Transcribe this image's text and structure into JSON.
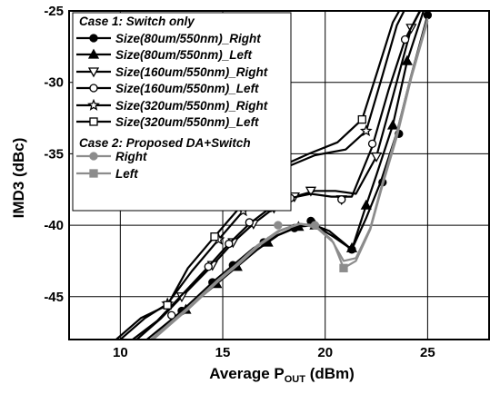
{
  "chart_data": {
    "type": "line",
    "xlabel_main": "Average P",
    "xlabel_sub": "OUT",
    "xlabel_unit": " (dBm)",
    "ylabel": "IMD3 (dBc)",
    "xlim": [
      7.5,
      28
    ],
    "ylim": [
      -48,
      -25
    ],
    "xticks": [
      10,
      15,
      20,
      25
    ],
    "yticks": [
      -25,
      -30,
      -35,
      -40,
      -45
    ],
    "grid": true,
    "legend_position": "top-left",
    "legend": {
      "case1_title": "Case 1: Switch only",
      "case2_title": "Case 2: Proposed DA+Switch"
    },
    "series": [
      {
        "name": "Size(80um/550nm)_Right",
        "color": "#000000",
        "marker": "filled-circle",
        "x": [
          11.3,
          12.5,
          13.0,
          14.5,
          15.5,
          16.5,
          17.5,
          18.5,
          19.3,
          20.2,
          21.3,
          22.0,
          22.7,
          23.5,
          24.2,
          25.0
        ],
        "y": [
          -48,
          -46.6,
          -46.0,
          -44.0,
          -42.8,
          -41.6,
          -40.8,
          -40.2,
          -39.9,
          -40.4,
          -41.7,
          -39.5,
          -37.0,
          -33.5,
          -29.5,
          -25.3
        ],
        "markers_x": [
          13.0,
          14.5,
          15.5,
          17.0,
          18.5,
          19.3,
          21.3,
          22.8,
          23.6,
          25.0
        ],
        "markers_y": [
          -46.0,
          -44.0,
          -42.8,
          -41.2,
          -40.2,
          -39.7,
          -41.7,
          -37.0,
          -33.6,
          -25.3
        ]
      },
      {
        "name": "Size(80um/550nm)_Left",
        "color": "#000000",
        "marker": "filled-triangle",
        "x": [
          11.5,
          12.7,
          13.2,
          14.7,
          15.7,
          16.7,
          17.7,
          18.7,
          19.5,
          20.4,
          21.3,
          22.0,
          22.5,
          23.3,
          24.0,
          24.8
        ],
        "y": [
          -48,
          -46.5,
          -45.9,
          -44.1,
          -42.9,
          -41.7,
          -40.7,
          -40.1,
          -40.0,
          -40.8,
          -41.7,
          -38.6,
          -36.5,
          -33.0,
          -28.5,
          -25.0
        ],
        "markers_x": [
          13.2,
          14.7,
          15.7,
          17.2,
          18.7,
          19.5,
          21.3,
          22.0,
          23.3,
          24.0
        ],
        "markers_y": [
          -45.9,
          -44.1,
          -42.9,
          -41.2,
          -40.1,
          -40.0,
          -41.6,
          -38.6,
          -33.0,
          -28.5
        ]
      },
      {
        "name": "Size(160um/550nm)_Right",
        "color": "#000000",
        "marker": "open-triangle-down",
        "x": [
          10.8,
          12.0,
          13.0,
          14.5,
          15.5,
          16.5,
          17.5,
          18.5,
          19.5,
          20.5,
          21.5,
          22.5,
          23.3,
          24.2,
          25.0
        ],
        "y": [
          -48,
          -46.5,
          -45.0,
          -42.8,
          -41.2,
          -39.9,
          -38.8,
          -38.0,
          -37.6,
          -37.6,
          -37.8,
          -35.2,
          -31.0,
          -26.2,
          -24.0
        ],
        "markers_x": [
          13.0,
          14.5,
          15.5,
          16.5,
          17.5,
          18.5,
          19.3,
          20.8,
          22.5,
          24.2
        ],
        "markers_y": [
          -45.0,
          -42.8,
          -41.2,
          -39.9,
          -38.8,
          -38.0,
          -37.6,
          -38.2,
          -35.2,
          -26.2
        ]
      },
      {
        "name": "Size(160um/550nm)_Left",
        "color": "#000000",
        "marker": "open-circle",
        "x": [
          10.6,
          11.8,
          12.8,
          14.3,
          15.3,
          16.3,
          17.3,
          18.3,
          19.3,
          20.3,
          21.3,
          22.3,
          23.1,
          23.9,
          24.8
        ],
        "y": [
          -48,
          -46.7,
          -45.2,
          -42.9,
          -41.3,
          -39.9,
          -38.8,
          -38.1,
          -37.8,
          -38.0,
          -38.0,
          -34.5,
          -30.5,
          -27.0,
          -24.5
        ],
        "markers_x": [
          12.5,
          14.3,
          15.3,
          16.3,
          17.3,
          18.3,
          20.8,
          22.3,
          23.9
        ],
        "markers_y": [
          -46.3,
          -42.9,
          -41.3,
          -39.8,
          -38.8,
          -38.1,
          -38.2,
          -34.3,
          -27.0
        ]
      },
      {
        "name": "Size(320um/550nm)_Right",
        "color": "#000000",
        "marker": "open-star",
        "x": [
          10.0,
          11.2,
          12.3,
          13.5,
          14.8,
          16.0,
          17.0,
          18.0,
          19.5,
          21.0,
          22.0,
          22.8,
          23.5,
          24.2
        ],
        "y": [
          -48,
          -46.5,
          -45.5,
          -43.2,
          -41.0,
          -39.0,
          -37.3,
          -36.0,
          -35.1,
          -34.7,
          -33.4,
          -29.5,
          -26.0,
          -24.0
        ],
        "markers_x": [
          12.3,
          14.8,
          16.0,
          17.0,
          22.0
        ],
        "markers_y": [
          -45.5,
          -41.0,
          -39.0,
          -37.3,
          -33.4
        ]
      },
      {
        "name": "Size(320um/550nm)_Left",
        "color": "#000000",
        "marker": "open-square",
        "x": [
          9.8,
          11.0,
          12.3,
          13.3,
          14.6,
          15.8,
          16.8,
          17.8,
          19.2,
          20.6,
          21.8,
          22.6,
          23.3,
          24.0
        ],
        "y": [
          -48,
          -46.5,
          -45.6,
          -43.0,
          -40.8,
          -38.8,
          -37.1,
          -35.9,
          -35.0,
          -34.2,
          -32.6,
          -29.0,
          -25.8,
          -24.0
        ],
        "markers_x": [
          12.3,
          14.6,
          16.8,
          21.8
        ],
        "markers_y": [
          -45.6,
          -40.8,
          -37.1,
          -32.6
        ]
      },
      {
        "name": "Right",
        "color": "#8c8c8c",
        "marker": "filled-circle",
        "x": [
          11.5,
          12.7,
          13.2,
          14.7,
          15.7,
          16.7,
          17.7,
          18.7,
          19.5,
          20.3,
          20.9,
          21.5,
          22.2,
          22.8,
          23.5,
          24.2,
          25.0
        ],
        "y": [
          -48,
          -46.5,
          -45.9,
          -43.9,
          -42.7,
          -41.4,
          -40.4,
          -39.9,
          -40.0,
          -41.0,
          -42.5,
          -42.3,
          -40.2,
          -37.0,
          -33.5,
          -29.5,
          -25.5
        ],
        "markers_x": [
          17.7,
          19.5
        ],
        "markers_y": [
          -40.0,
          -40.0
        ]
      },
      {
        "name": "Left",
        "color": "#8c8c8c",
        "marker": "filled-square",
        "x": [
          11.6,
          12.8,
          13.3,
          14.8,
          15.8,
          16.8,
          17.8,
          18.8,
          19.6,
          20.4,
          20.9,
          21.5,
          22.2,
          22.8,
          23.5,
          24.2,
          25.0
        ],
        "y": [
          -48,
          -46.5,
          -45.9,
          -43.9,
          -42.7,
          -41.4,
          -40.4,
          -39.9,
          -40.2,
          -41.2,
          -43.0,
          -42.5,
          -40.3,
          -37.2,
          -33.8,
          -29.7,
          -25.7
        ],
        "markers_x": [
          20.9
        ],
        "markers_y": [
          -43.0
        ]
      }
    ]
  }
}
